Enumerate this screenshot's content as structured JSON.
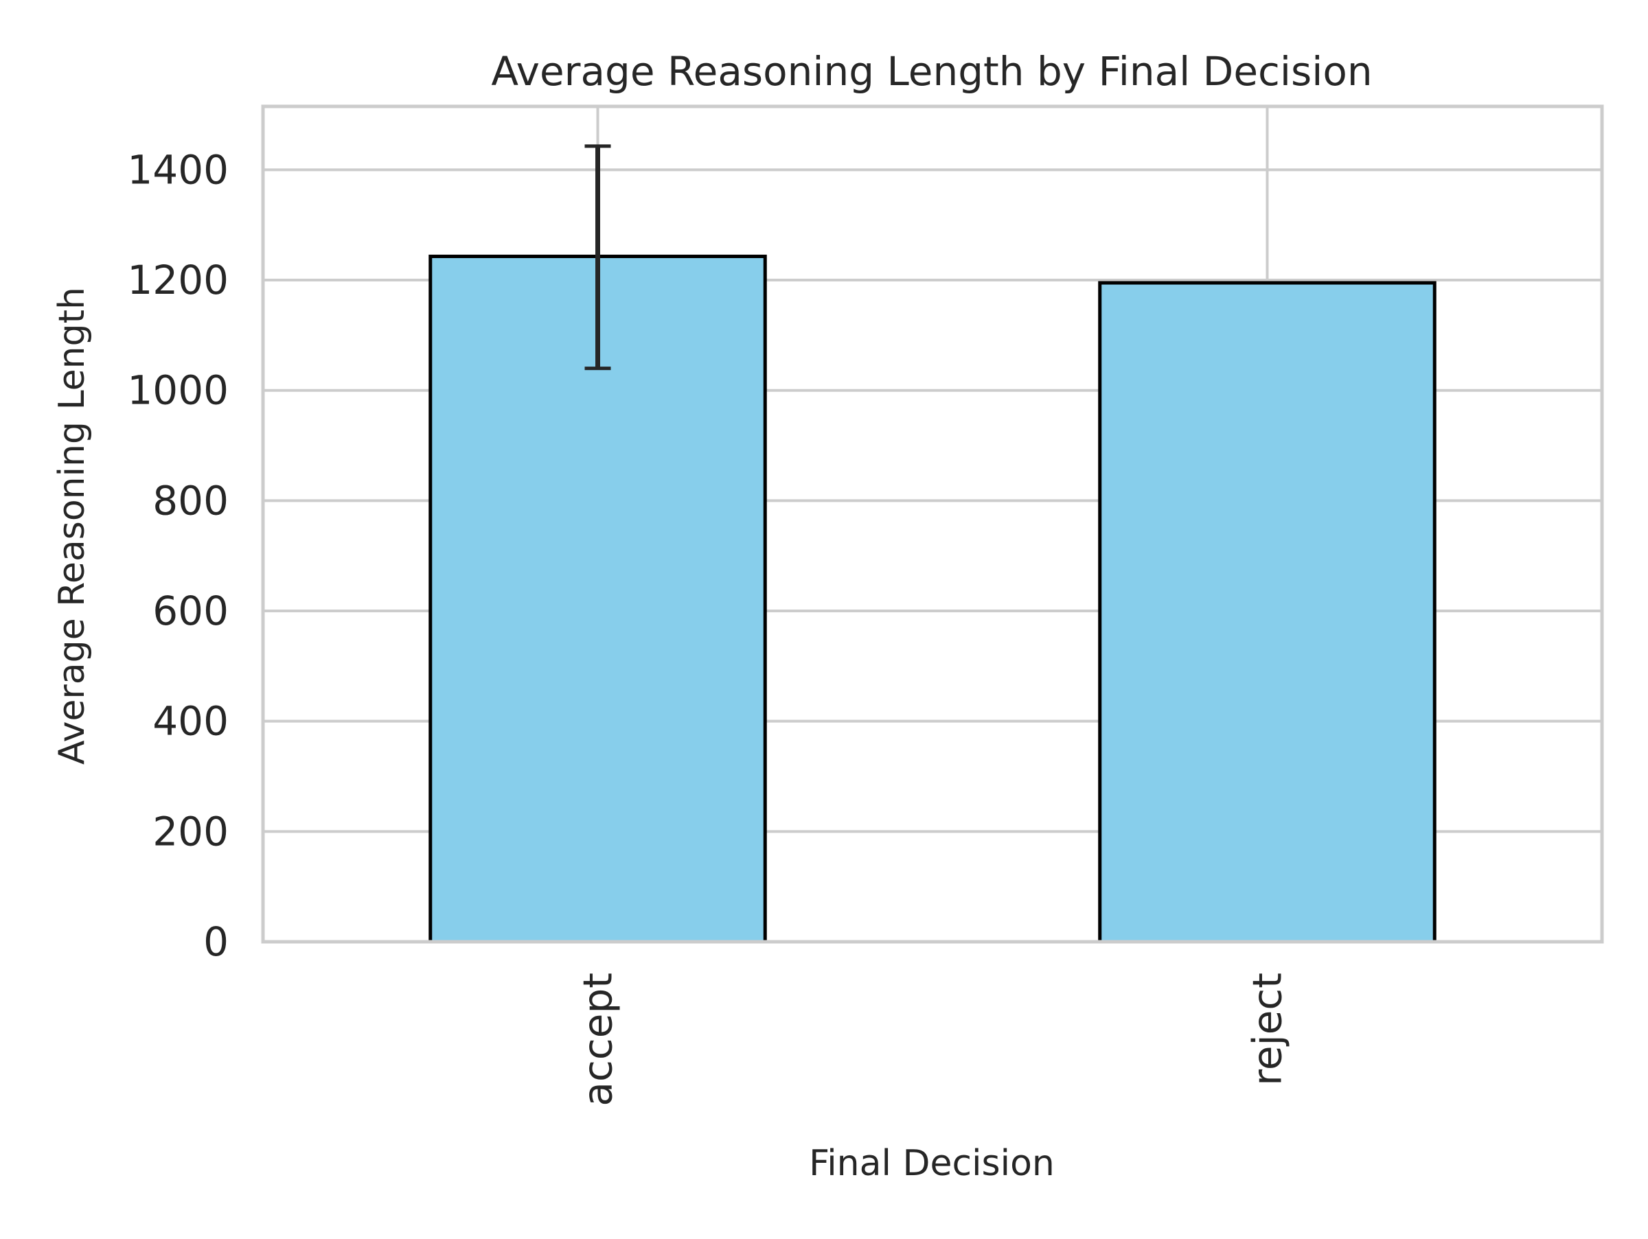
{
  "chart_data": {
    "type": "bar",
    "title": "Average Reasoning Length by Final Decision",
    "xlabel": "Final Decision",
    "ylabel": "Average Reasoning Length",
    "categories": [
      "accept",
      "reject"
    ],
    "values": [
      1243,
      1195
    ],
    "error_bars": [
      {
        "category": "accept",
        "low": 1040,
        "high": 1443
      },
      {
        "category": "reject",
        "low": null,
        "high": null
      }
    ],
    "yticks": [
      "0",
      "200",
      "400",
      "600",
      "800",
      "1000",
      "1200",
      "1400"
    ],
    "ylim": [
      0,
      1515
    ],
    "grid": true,
    "legend": "none",
    "colors": {
      "bar_fill": "#87CEEB",
      "bar_edge": "#000000",
      "grid": "#cccccc",
      "error_bar": "#262626",
      "text": "#262626"
    }
  }
}
